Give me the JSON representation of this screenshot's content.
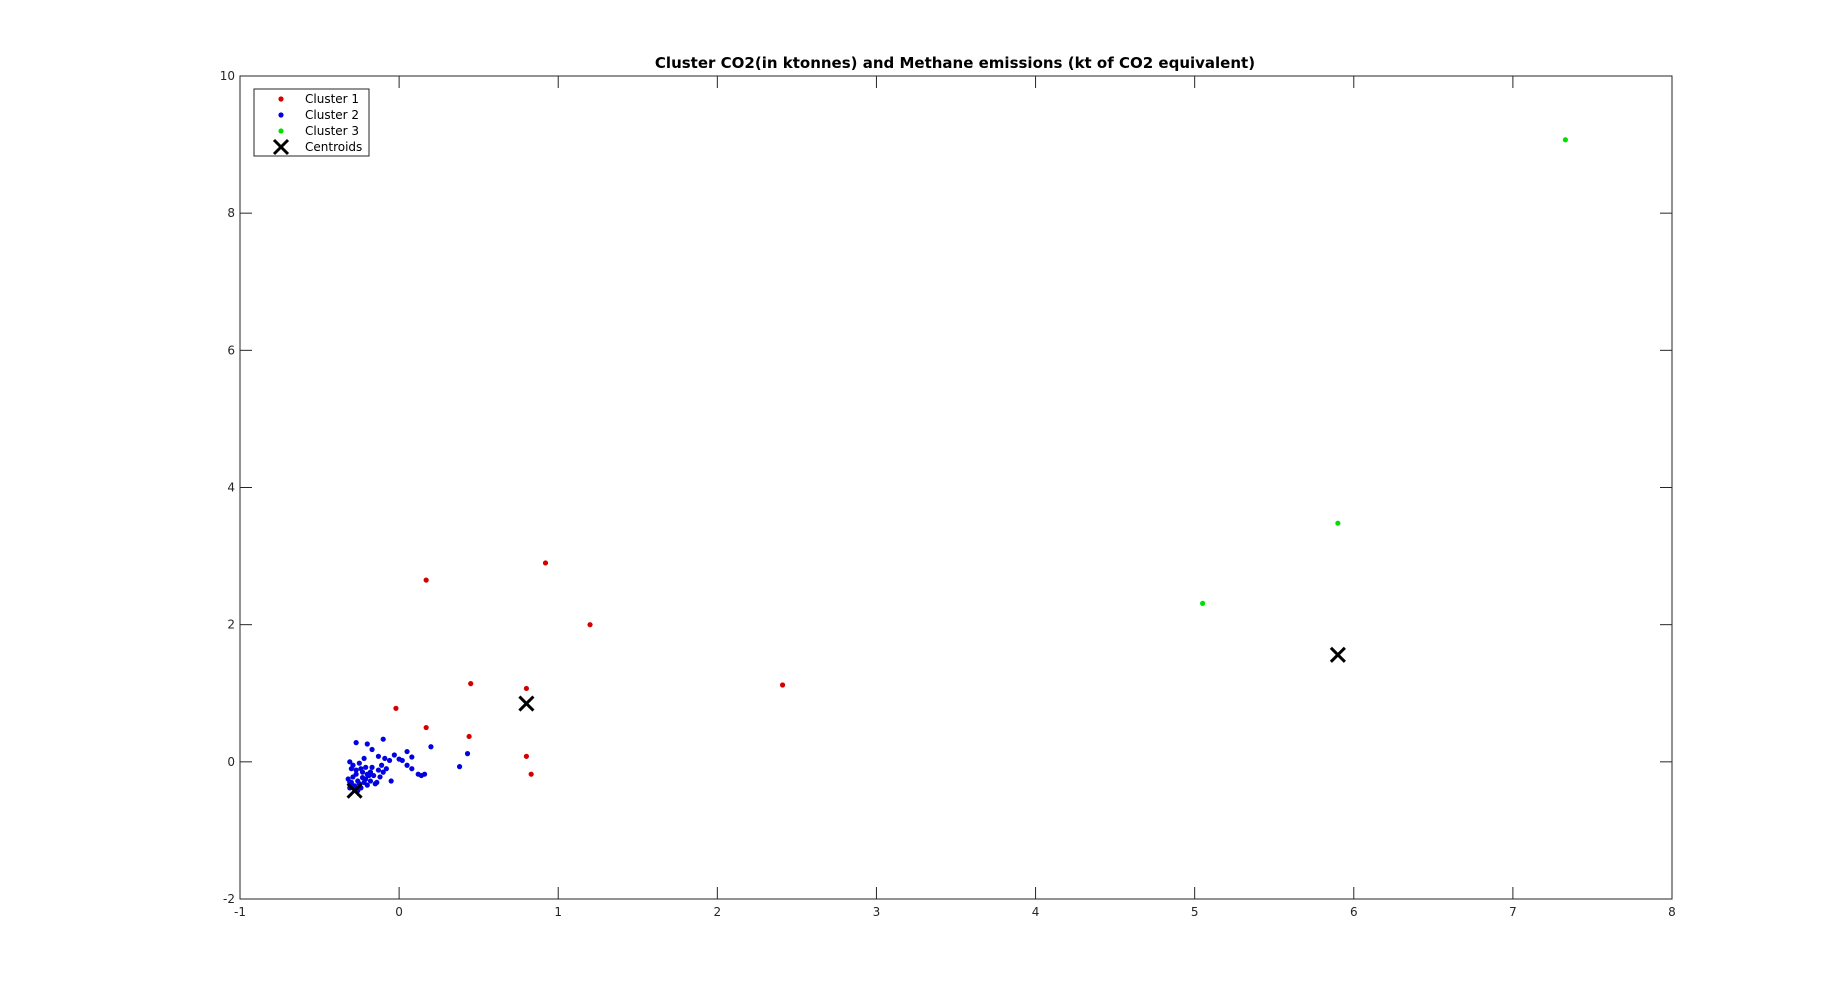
{
  "chart_data": {
    "type": "scatter",
    "title": "Cluster CO2(in ktonnes) and Methane emissions (kt of CO2 equivalent)",
    "xlabel": "",
    "ylabel": "",
    "xlim": [
      -1,
      8
    ],
    "ylim": [
      -2,
      10
    ],
    "xticks": [
      "-1",
      "0",
      "1",
      "2",
      "3",
      "4",
      "5",
      "6",
      "7",
      "8"
    ],
    "yticks": [
      "-2",
      "0",
      "2",
      "4",
      "6",
      "8",
      "10"
    ],
    "grid": false,
    "legend_position": "top-left",
    "series": [
      {
        "name": "Cluster 1",
        "color": "#d40000",
        "marker": "dot",
        "points": [
          [
            0.17,
            2.65
          ],
          [
            0.92,
            2.9
          ],
          [
            1.2,
            2.0
          ],
          [
            2.41,
            1.12
          ],
          [
            0.45,
            1.14
          ],
          [
            0.8,
            1.07
          ],
          [
            -0.02,
            0.78
          ],
          [
            0.17,
            0.5
          ],
          [
            0.44,
            0.37
          ],
          [
            0.8,
            0.08
          ],
          [
            0.83,
            -0.18
          ]
        ]
      },
      {
        "name": "Cluster 2",
        "color": "#0000e0",
        "marker": "dot",
        "points": [
          [
            -0.27,
            0.28
          ],
          [
            -0.2,
            0.26
          ],
          [
            -0.1,
            0.33
          ],
          [
            -0.17,
            0.18
          ],
          [
            -0.22,
            0.05
          ],
          [
            -0.25,
            -0.02
          ],
          [
            -0.31,
            0.0
          ],
          [
            -0.13,
            0.08
          ],
          [
            -0.09,
            0.05
          ],
          [
            -0.03,
            0.1
          ],
          [
            0.0,
            0.04
          ],
          [
            0.05,
            0.15
          ],
          [
            0.08,
            0.07
          ],
          [
            0.2,
            0.22
          ],
          [
            0.43,
            0.12
          ],
          [
            0.38,
            -0.07
          ],
          [
            0.05,
            -0.05
          ],
          [
            0.08,
            -0.1
          ],
          [
            0.12,
            -0.18
          ],
          [
            0.14,
            -0.2
          ],
          [
            0.16,
            -0.18
          ],
          [
            -0.05,
            -0.28
          ],
          [
            -0.1,
            -0.15
          ],
          [
            -0.12,
            -0.22
          ],
          [
            -0.14,
            -0.3
          ],
          [
            -0.17,
            -0.08
          ],
          [
            -0.19,
            -0.2
          ],
          [
            -0.21,
            -0.25
          ],
          [
            -0.23,
            -0.15
          ],
          [
            -0.25,
            -0.32
          ],
          [
            -0.27,
            -0.12
          ],
          [
            -0.29,
            -0.22
          ],
          [
            -0.3,
            -0.3
          ],
          [
            -0.31,
            -0.38
          ],
          [
            -0.28,
            -0.35
          ],
          [
            -0.26,
            -0.28
          ],
          [
            -0.24,
            -0.38
          ],
          [
            -0.22,
            -0.3
          ],
          [
            -0.2,
            -0.34
          ],
          [
            -0.18,
            -0.28
          ],
          [
            -0.16,
            -0.2
          ],
          [
            -0.15,
            -0.32
          ],
          [
            -0.3,
            -0.1
          ],
          [
            -0.29,
            -0.05
          ],
          [
            -0.27,
            -0.18
          ],
          [
            -0.24,
            -0.1
          ],
          [
            -0.21,
            -0.08
          ],
          [
            -0.18,
            -0.15
          ],
          [
            -0.11,
            -0.05
          ],
          [
            -0.08,
            -0.1
          ],
          [
            -0.32,
            -0.25
          ],
          [
            -0.31,
            -0.3
          ],
          [
            -0.3,
            -0.35
          ],
          [
            -0.28,
            -0.4
          ],
          [
            -0.26,
            -0.42
          ],
          [
            -0.23,
            -0.23
          ],
          [
            -0.2,
            -0.18
          ],
          [
            0.02,
            0.02
          ],
          [
            -0.06,
            0.02
          ],
          [
            -0.13,
            -0.12
          ]
        ]
      },
      {
        "name": "Cluster 3",
        "color": "#00e000",
        "marker": "dot",
        "points": [
          [
            7.33,
            9.07
          ],
          [
            5.9,
            3.48
          ],
          [
            5.05,
            2.31
          ]
        ]
      },
      {
        "name": "Centroids",
        "color": "#000000",
        "marker": "x",
        "points": [
          [
            -0.28,
            -0.42
          ],
          [
            0.8,
            0.85
          ],
          [
            5.9,
            1.56
          ]
        ]
      }
    ]
  }
}
